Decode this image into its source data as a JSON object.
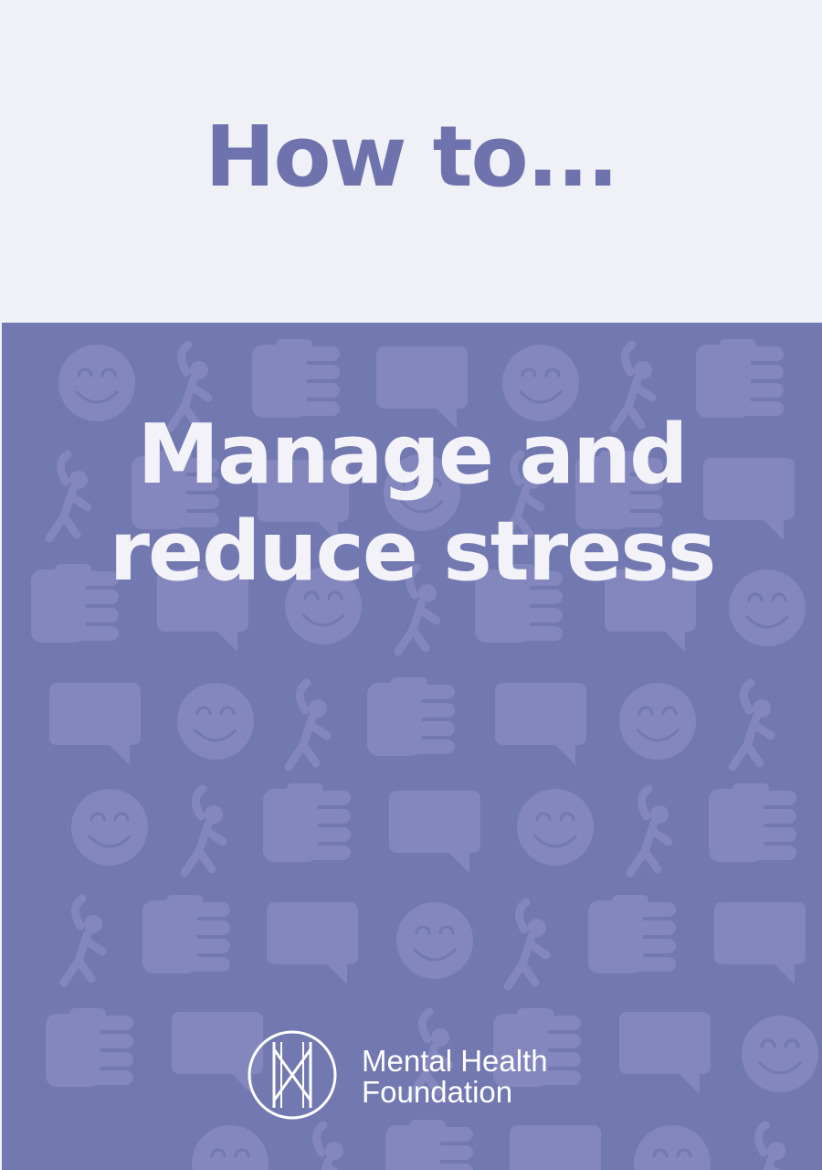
{
  "header": {
    "kicker": "How to..."
  },
  "cover": {
    "title_line1": "Manage and",
    "title_line2": "reduce stress",
    "pattern_icons": [
      "smiley-icon",
      "stretching-person-icon",
      "hand-icon",
      "speech-bubble-icon"
    ]
  },
  "logo": {
    "line1": "Mental Health",
    "line2": "Foundation"
  },
  "colors": {
    "header_background": "#f0f1f7",
    "cover_background": "#7278b0",
    "accent_text": "#6f73ad",
    "title_text": "#f2f2f8",
    "pattern": "#8387bd"
  }
}
